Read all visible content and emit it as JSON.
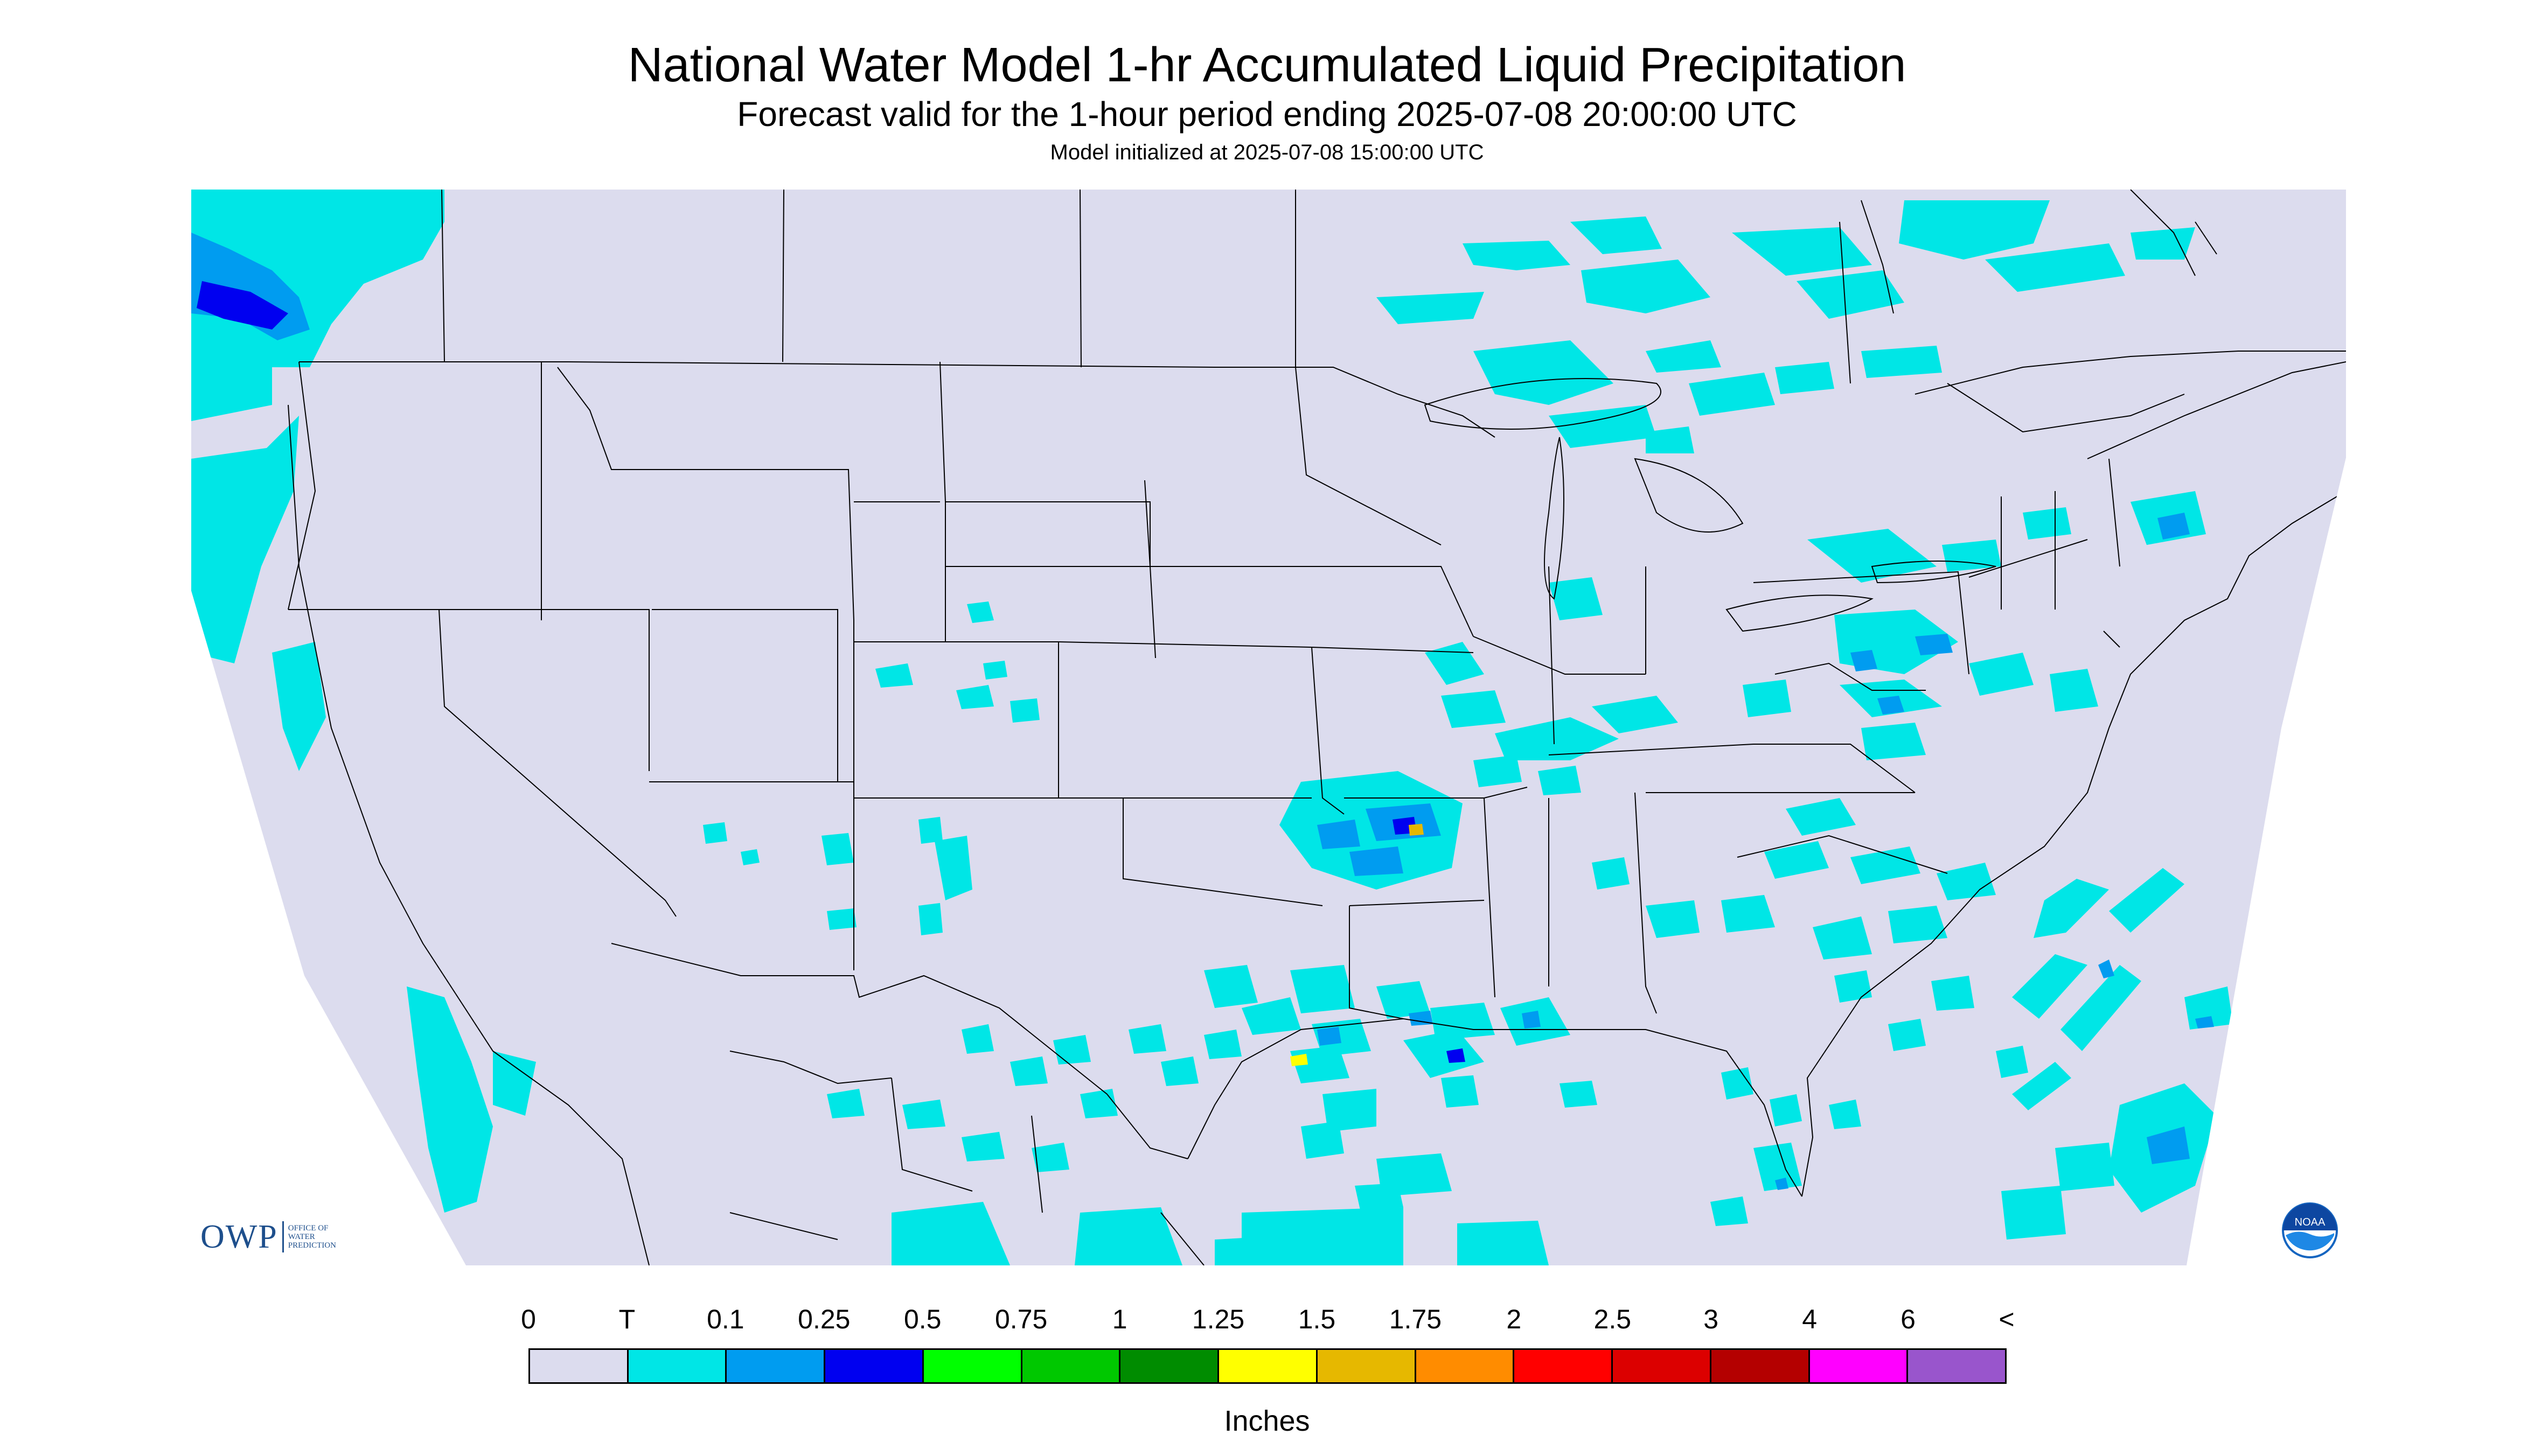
{
  "title": "National Water Model 1-hr Accumulated Liquid Precipitation",
  "subtitle": "Forecast valid for the 1-hour period ending 2025-07-08 20:00:00 UTC",
  "init": "Model initialized at 2025-07-08 15:00:00 UTC",
  "map": {
    "background_color": "#ffffff",
    "domain_fill": "#dcdcee",
    "boundary_color": "#000000"
  },
  "legend": {
    "units": "Inches",
    "labels": [
      "0",
      "T",
      "0.1",
      "0.25",
      "0.5",
      "0.75",
      "1",
      "1.25",
      "1.5",
      "1.75",
      "2",
      "2.5",
      "3",
      "4",
      "6",
      "<"
    ],
    "colors": [
      "#dcdcee",
      "#00e6e6",
      "#009cf0",
      "#0000f0",
      "#00ff00",
      "#00c800",
      "#008c00",
      "#ffff00",
      "#e6b800",
      "#ff8c00",
      "#ff0000",
      "#dc0000",
      "#b40000",
      "#ff00ff",
      "#9955cc"
    ]
  },
  "logos": {
    "owp": {
      "abbr": "OWP",
      "lines": [
        "OFFICE OF",
        "WATER",
        "PREDICTION"
      ],
      "color": "#1e4f8c"
    },
    "noaa": {
      "text": "NOAA",
      "color": "#1565c0"
    }
  }
}
